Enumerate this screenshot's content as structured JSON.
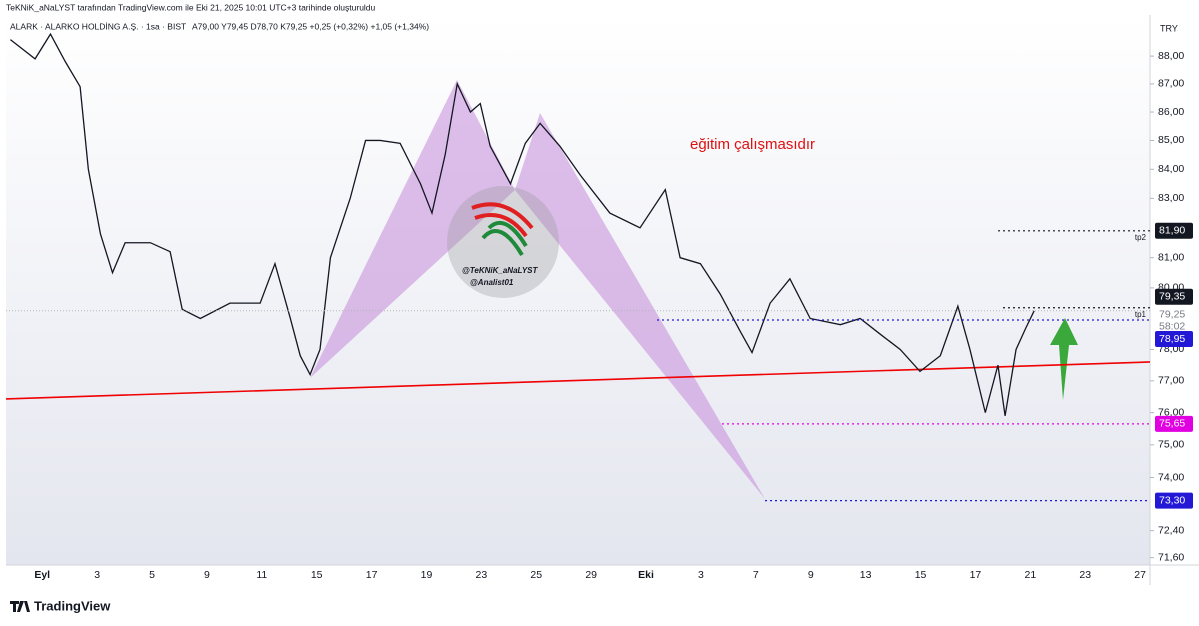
{
  "header": "TeKNiK_aNaLYST tarafından TradingView.com ile Eki 21, 2025 10:01 UTC+3 tarihinde oluşturuldu",
  "brand": "TradingView",
  "chart_data": {
    "type": "line",
    "title": "ALARK · ALARKO HOLDİNG A.Ş. · 1sa · BIST",
    "subtitle": "A79,00  Y79,45  D78,70  K79,25  +0,25 (+0,32%)  +1,05 (+1,34%)",
    "currency": "TRY",
    "annotation": "eğitim çalışmasıdır",
    "watermark": [
      "@TeKNiK_aNaLYST",
      "@Analist01"
    ],
    "log_scale": true,
    "ylim": [
      70.8,
      89.5
    ],
    "yticks": [
      {
        "value": 71.6,
        "label": "71,60"
      },
      {
        "value": 72.4,
        "label": "72,40"
      },
      {
        "value": 74,
        "label": "74,00"
      },
      {
        "value": 75,
        "label": "75,00"
      },
      {
        "value": 76,
        "label": "76,00"
      },
      {
        "value": 77,
        "label": "77,00"
      },
      {
        "value": 78,
        "label": "78,00"
      },
      {
        "value": 80,
        "label": "80,00"
      },
      {
        "value": 81,
        "label": "81,00"
      },
      {
        "value": 83,
        "label": "83,00"
      },
      {
        "value": 84,
        "label": "84,00"
      },
      {
        "value": 85,
        "label": "85,00"
      },
      {
        "value": 86,
        "label": "86,00"
      },
      {
        "value": 87,
        "label": "87,00"
      },
      {
        "value": 88,
        "label": "88,00"
      }
    ],
    "xlim": [
      -0.66,
      20.18
    ],
    "xticks": [
      {
        "value": 0,
        "label": "Eyl"
      },
      {
        "value": 1,
        "label": "3"
      },
      {
        "value": 2,
        "label": "5"
      },
      {
        "value": 3,
        "label": "9"
      },
      {
        "value": 4,
        "label": "11"
      },
      {
        "value": 5,
        "label": "15"
      },
      {
        "value": 6,
        "label": "17"
      },
      {
        "value": 7,
        "label": "19"
      },
      {
        "value": 8,
        "label": "23"
      },
      {
        "value": 9,
        "label": "25"
      },
      {
        "value": 10,
        "label": "29"
      },
      {
        "value": 11,
        "label": "Eki"
      },
      {
        "value": 12,
        "label": "3"
      },
      {
        "value": 13,
        "label": "7"
      },
      {
        "value": 14,
        "label": "9"
      },
      {
        "value": 15,
        "label": "13"
      },
      {
        "value": 16,
        "label": "15"
      },
      {
        "value": 17,
        "label": "17"
      },
      {
        "value": 18,
        "label": "21"
      },
      {
        "value": 19,
        "label": "23"
      },
      {
        "value": 20,
        "label": "27"
      }
    ],
    "x": [
      -0.58,
      -0.13,
      0.15,
      0.42,
      0.69,
      0.84,
      1.06,
      1.28,
      1.51,
      1.97,
      2.33,
      2.55,
      2.88,
      3.42,
      3.97,
      4.24,
      4.52,
      4.7,
      4.88,
      5.06,
      5.25,
      5.61,
      5.89,
      6.16,
      6.52,
      6.89,
      7.1,
      7.34,
      7.56,
      7.8,
      7.98,
      8.16,
      8.53,
      8.8,
      9.07,
      9.43,
      9.8,
      10.34,
      10.89,
      11.35,
      11.62,
      11.99,
      12.35,
      12.71,
      12.93,
      13.26,
      13.62,
      13.99,
      14.54,
      14.9,
      15.26,
      15.63,
      15.99,
      16.36,
      16.68,
      16.9,
      17.18,
      17.41,
      17.54,
      17.74,
      17.92,
      18.07
    ],
    "series": [
      {
        "color": "#131722",
        "values": [
          88.6,
          87.9,
          88.8,
          87.8,
          86.9,
          84,
          81.8,
          80.5,
          81.5,
          81.5,
          81.2,
          79.3,
          79,
          79.5,
          79.5,
          80.8,
          79,
          77.8,
          77.2,
          78,
          81,
          83,
          85,
          85,
          84.9,
          83.5,
          82.5,
          84.5,
          87,
          86,
          86.3,
          84.8,
          83.5,
          84.9,
          85.6,
          84.8,
          83.8,
          82.5,
          82,
          83.3,
          81,
          80.8,
          79.8,
          78.6,
          77.9,
          79.5,
          80.3,
          79,
          78.8,
          79,
          78.5,
          78,
          77.3,
          77.8,
          79.4,
          78,
          76,
          77.5,
          75.9,
          78,
          78.7,
          79.25
        ]
      }
    ],
    "trendline": {
      "color": "#f00000",
      "x": [
        -0.66,
        20.18
      ],
      "values": [
        76.43,
        77.6
      ]
    },
    "levels": [
      {
        "value": 81.9,
        "label": "81,90",
        "color": "#131722",
        "tag": "tp2"
      },
      {
        "value": 79.35,
        "label": "79,35",
        "color": "#131722",
        "tag": "tp1"
      },
      {
        "value": 78.95,
        "label": "78,95",
        "color": "#2218d6"
      },
      {
        "value": 75.65,
        "label": "75,65",
        "color": "#e100e1"
      },
      {
        "value": 73.3,
        "label": "73,30",
        "color": "#2218d6"
      }
    ],
    "last_price": {
      "value": 79.25,
      "label": "79,25",
      "countdown": "58:02"
    }
  }
}
